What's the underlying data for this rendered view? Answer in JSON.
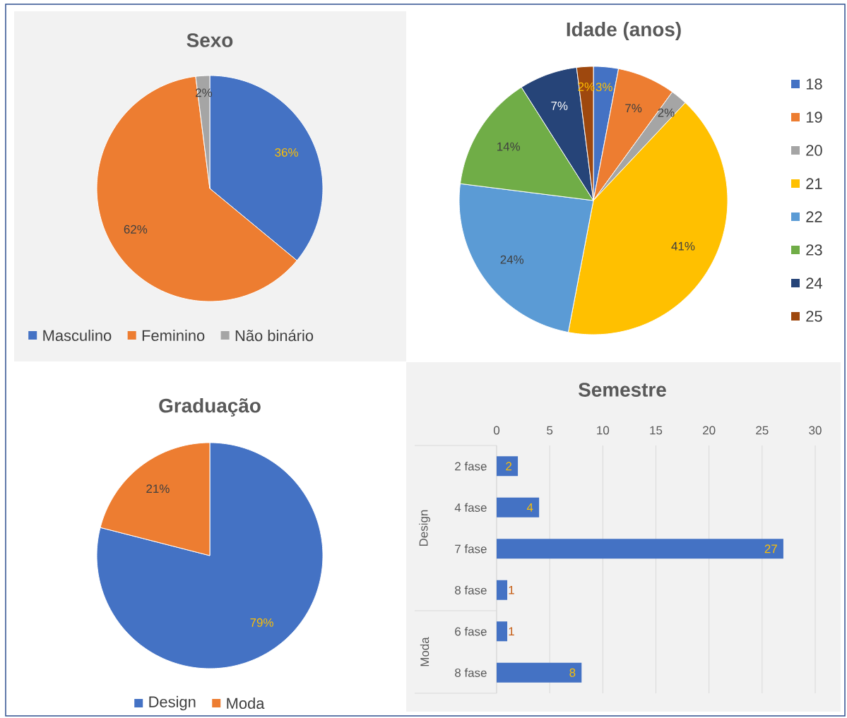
{
  "chart_data": [
    {
      "type": "pie",
      "title": "Sexo",
      "categories": [
        "Masculino",
        "Feminino",
        "Não binário"
      ],
      "values": [
        36,
        62,
        2
      ],
      "colors": [
        "#4472c4",
        "#ed7d31",
        "#a5a5a5"
      ],
      "value_labels": [
        "36%",
        "62%",
        "2%"
      ],
      "legend": "bottom"
    },
    {
      "type": "pie",
      "title": "Idade (anos)",
      "categories": [
        "18",
        "19",
        "20",
        "21",
        "22",
        "23",
        "24",
        "25"
      ],
      "values": [
        3,
        7,
        2,
        41,
        24,
        14,
        7,
        2
      ],
      "colors": [
        "#4472c4",
        "#ed7d31",
        "#a5a5a5",
        "#ffc000",
        "#5b9bd5",
        "#70ad47",
        "#264478",
        "#9e480e"
      ],
      "value_labels": [
        "3%",
        "7%",
        "2%",
        "41%",
        "24%",
        "14%",
        "7%",
        "2%"
      ],
      "legend": "right"
    },
    {
      "type": "pie",
      "title": "Graduação",
      "categories": [
        "Design",
        "Moda"
      ],
      "values": [
        79,
        21
      ],
      "colors": [
        "#4472c4",
        "#ed7d31"
      ],
      "value_labels": [
        "79%",
        "21%"
      ],
      "legend": "bottom"
    },
    {
      "type": "bar",
      "orientation": "horizontal",
      "title": "Semestre",
      "categories": [
        "2 fase",
        "4 fase",
        "7 fase",
        "8 fase",
        "6 fase",
        "8 fase"
      ],
      "values": [
        2,
        4,
        27,
        1,
        1,
        8
      ],
      "color": "#4472c4",
      "xlim": [
        0,
        30
      ],
      "xticks": [
        0,
        5,
        10,
        15,
        20,
        25,
        30
      ],
      "grid": "x",
      "data_labels": true,
      "annotations": [
        "Design",
        "Moda"
      ]
    }
  ]
}
